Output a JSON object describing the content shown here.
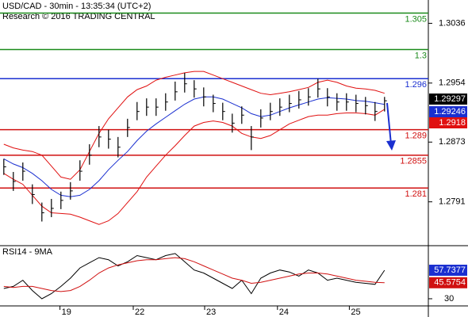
{
  "chart_data": [
    {
      "type": "ohlc",
      "title": "USD/CAD - 30min - 13:35:34 (UTC+2)",
      "subtitle": "Research © 2016 TRADING CENTRAL",
      "xlim": [
        -0.4,
        44.6
      ],
      "ylim": [
        1.2733,
        1.3068
      ],
      "yticks": [
        1.3036,
        1.2954,
        1.2873,
        1.2791
      ],
      "price": {
        "color": "#000000",
        "high": [
          1.285,
          1.2832,
          1.2845,
          1.2815,
          1.279,
          1.2795,
          1.2805,
          1.2818,
          1.2848,
          1.287,
          1.2895,
          1.289,
          1.288,
          1.2905,
          1.2928,
          1.2933,
          1.2933,
          1.294,
          1.2956,
          1.2968,
          1.2958,
          1.2948,
          1.2938,
          1.2927,
          1.2912,
          1.2922,
          1.2895,
          1.2918,
          1.2927,
          1.2933,
          1.2938,
          1.2943,
          1.2947,
          1.296,
          1.2947,
          1.294,
          1.294,
          1.2938,
          1.2935,
          1.2928,
          1.2935
        ],
        "low": [
          1.2828,
          1.2806,
          1.282,
          1.2788,
          1.2764,
          1.277,
          1.2781,
          1.2794,
          1.282,
          1.2842,
          1.2866,
          1.2864,
          1.2852,
          1.288,
          1.2903,
          1.2909,
          1.2909,
          1.2916,
          1.293,
          1.2941,
          1.2934,
          1.2922,
          1.2914,
          1.2903,
          1.2886,
          1.2898,
          1.2862,
          1.2893,
          1.2903,
          1.2909,
          1.2914,
          1.2919,
          1.2923,
          1.2934,
          1.2922,
          1.2916,
          1.2916,
          1.2914,
          1.2911,
          1.2902,
          1.2915
        ],
        "close": [
          1.2839,
          1.2819,
          1.2833,
          1.2801,
          1.2776,
          1.2782,
          1.2793,
          1.2806,
          1.2833,
          1.2855,
          1.288,
          1.2877,
          1.2866,
          1.2893,
          1.2915,
          1.2921,
          1.2921,
          1.2928,
          1.2942,
          1.2953,
          1.2946,
          1.2935,
          1.2926,
          1.2915,
          1.2899,
          1.291,
          1.288,
          1.2906,
          1.2915,
          1.2921,
          1.2926,
          1.2931,
          1.2935,
          1.2946,
          1.2935,
          1.2928,
          1.2928,
          1.2926,
          1.2923,
          1.2915,
          1.29297
        ]
      },
      "lines": [
        {
          "color": "#1a2fd0",
          "values": [
            1.285,
            1.2843,
            1.2838,
            1.283,
            1.282,
            1.2808,
            1.28,
            1.2798,
            1.28,
            1.2808,
            1.282,
            1.2835,
            1.2848,
            1.286,
            1.2875,
            1.2888,
            1.2898,
            1.2907,
            1.2916,
            1.2925,
            1.2932,
            1.2935,
            1.2935,
            1.2932,
            1.2926,
            1.292,
            1.2912,
            1.2908,
            1.291,
            1.2915,
            1.292,
            1.2924,
            1.2928,
            1.2932,
            1.2934,
            1.2933,
            1.2932,
            1.293,
            1.2929,
            1.2927,
            1.29246
          ]
        },
        {
          "color": "#e01010",
          "values": [
            1.287,
            1.2865,
            1.2862,
            1.286,
            1.2855,
            1.284,
            1.2825,
            1.2822,
            1.2835,
            1.286,
            1.2885,
            1.2905,
            1.292,
            1.2935,
            1.2945,
            1.295,
            1.2958,
            1.2962,
            1.2965,
            1.2968,
            1.297,
            1.297,
            1.2965,
            1.296,
            1.2955,
            1.295,
            1.2945,
            1.294,
            1.2938,
            1.294,
            1.2942,
            1.2945,
            1.2948,
            1.2955,
            1.2958,
            1.2955,
            1.295,
            1.2947,
            1.2946,
            1.2944,
            1.294
          ]
        },
        {
          "color": "#e01010",
          "values": [
            1.283,
            1.2822,
            1.2815,
            1.28,
            1.2785,
            1.2776,
            1.2775,
            1.2774,
            1.277,
            1.2765,
            1.276,
            1.2765,
            1.2775,
            1.279,
            1.2805,
            1.2825,
            1.284,
            1.2855,
            1.2868,
            1.2882,
            1.2895,
            1.29,
            1.2902,
            1.29,
            1.2895,
            1.2885,
            1.288,
            1.2878,
            1.2882,
            1.289,
            1.2898,
            1.2903,
            1.2908,
            1.291,
            1.291,
            1.2912,
            1.2913,
            1.2913,
            1.2912,
            1.291,
            1.2918
          ]
        }
      ],
      "levels": [
        {
          "value": 1.305,
          "color": "#1a8a1a"
        },
        {
          "value": 1.3,
          "color": "#1a8a1a"
        },
        {
          "value": 1.296,
          "color": "#1a2fd0"
        },
        {
          "value": 1.289,
          "color": "#d01010"
        },
        {
          "value": 1.2855,
          "color": "#d01010"
        },
        {
          "value": 1.281,
          "color": "#d01010"
        }
      ]
    },
    {
      "type": "line",
      "title": "RSI14 - 9MA",
      "xlim": [
        -0.4,
        44.6
      ],
      "ylim": [
        23.8,
        80.1
      ],
      "yticks": [
        30
      ],
      "xticks": [
        {
          "value": 5.9,
          "label": "19"
        },
        {
          "value": 13.6,
          "label": "22"
        },
        {
          "value": 21.1,
          "label": "23"
        },
        {
          "value": 28.75,
          "label": "24"
        },
        {
          "value": 36.3,
          "label": "25"
        }
      ],
      "series": [
        {
          "color": "#000000",
          "box": "#1a2fd0",
          "values": [
            40,
            42,
            48,
            38,
            30,
            35,
            42,
            50,
            60,
            65,
            70,
            68,
            62,
            66,
            72,
            70,
            68,
            72,
            74,
            66,
            58,
            55,
            50,
            45,
            40,
            48,
            35,
            50,
            55,
            58,
            56,
            52,
            58,
            55,
            48,
            50,
            48,
            46,
            45,
            44,
            57.7377
          ]
        },
        {
          "color": "#d01010",
          "box": "#d01010",
          "values": [
            42,
            41,
            42,
            42,
            40,
            38,
            37,
            38,
            42,
            48,
            55,
            60,
            63,
            65,
            67,
            68,
            68,
            69,
            70,
            69,
            66,
            62,
            58,
            54,
            50,
            48,
            45,
            46,
            48,
            50,
            52,
            54,
            55,
            55,
            54,
            52,
            50,
            48,
            47,
            46,
            45.5754
          ]
        }
      ]
    }
  ]
}
